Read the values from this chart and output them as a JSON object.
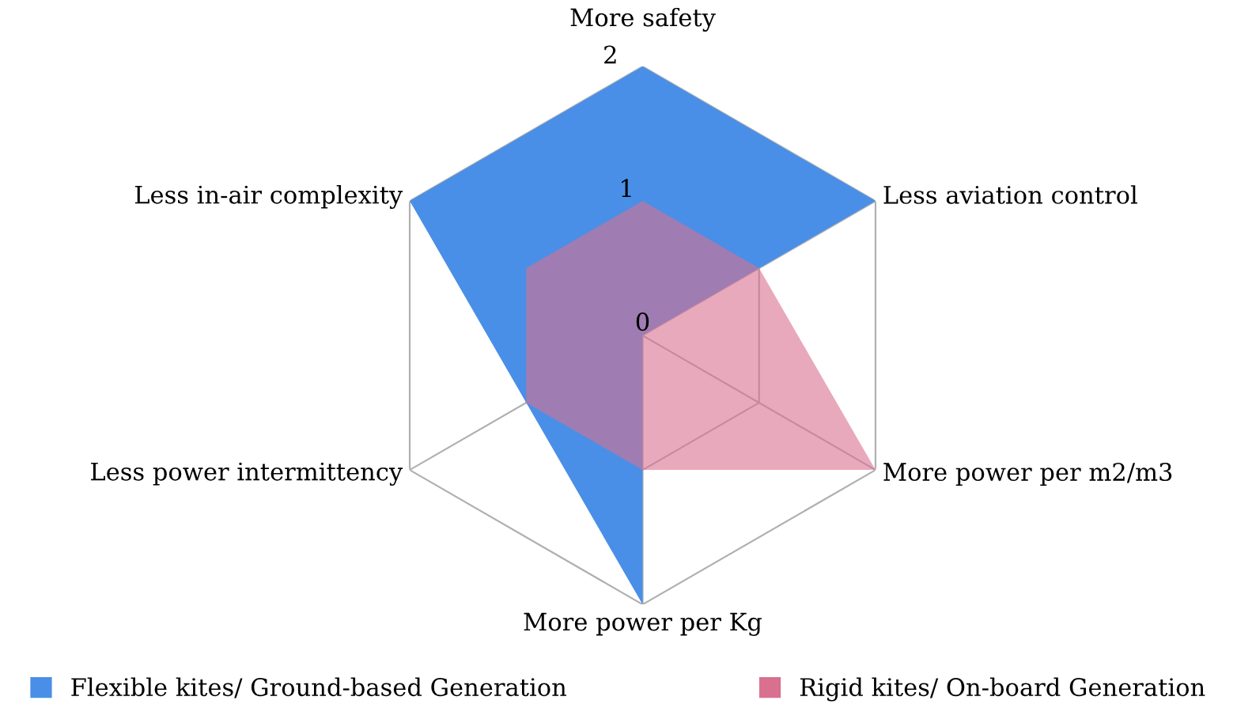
{
  "chart_data": {
    "type": "radar",
    "categories": [
      "More safety",
      "Less aviation control",
      "More power per m2/m3",
      "More power per Kg",
      "Less power intermittency",
      "Less in-air complexity"
    ],
    "series": [
      {
        "name": "Flexible kites/ Ground-based Generation",
        "color": "#4a8fe7",
        "values": [
          2,
          2,
          0,
          2,
          1,
          2
        ]
      },
      {
        "name": "Rigid kites/ On-board Generation",
        "color": "#d9708f",
        "values": [
          1,
          1,
          2,
          1,
          1,
          1
        ]
      }
    ],
    "ylim": [
      0,
      2
    ],
    "yticks": [
      0,
      1,
      2
    ],
    "grid": true,
    "legend": "bottom"
  }
}
